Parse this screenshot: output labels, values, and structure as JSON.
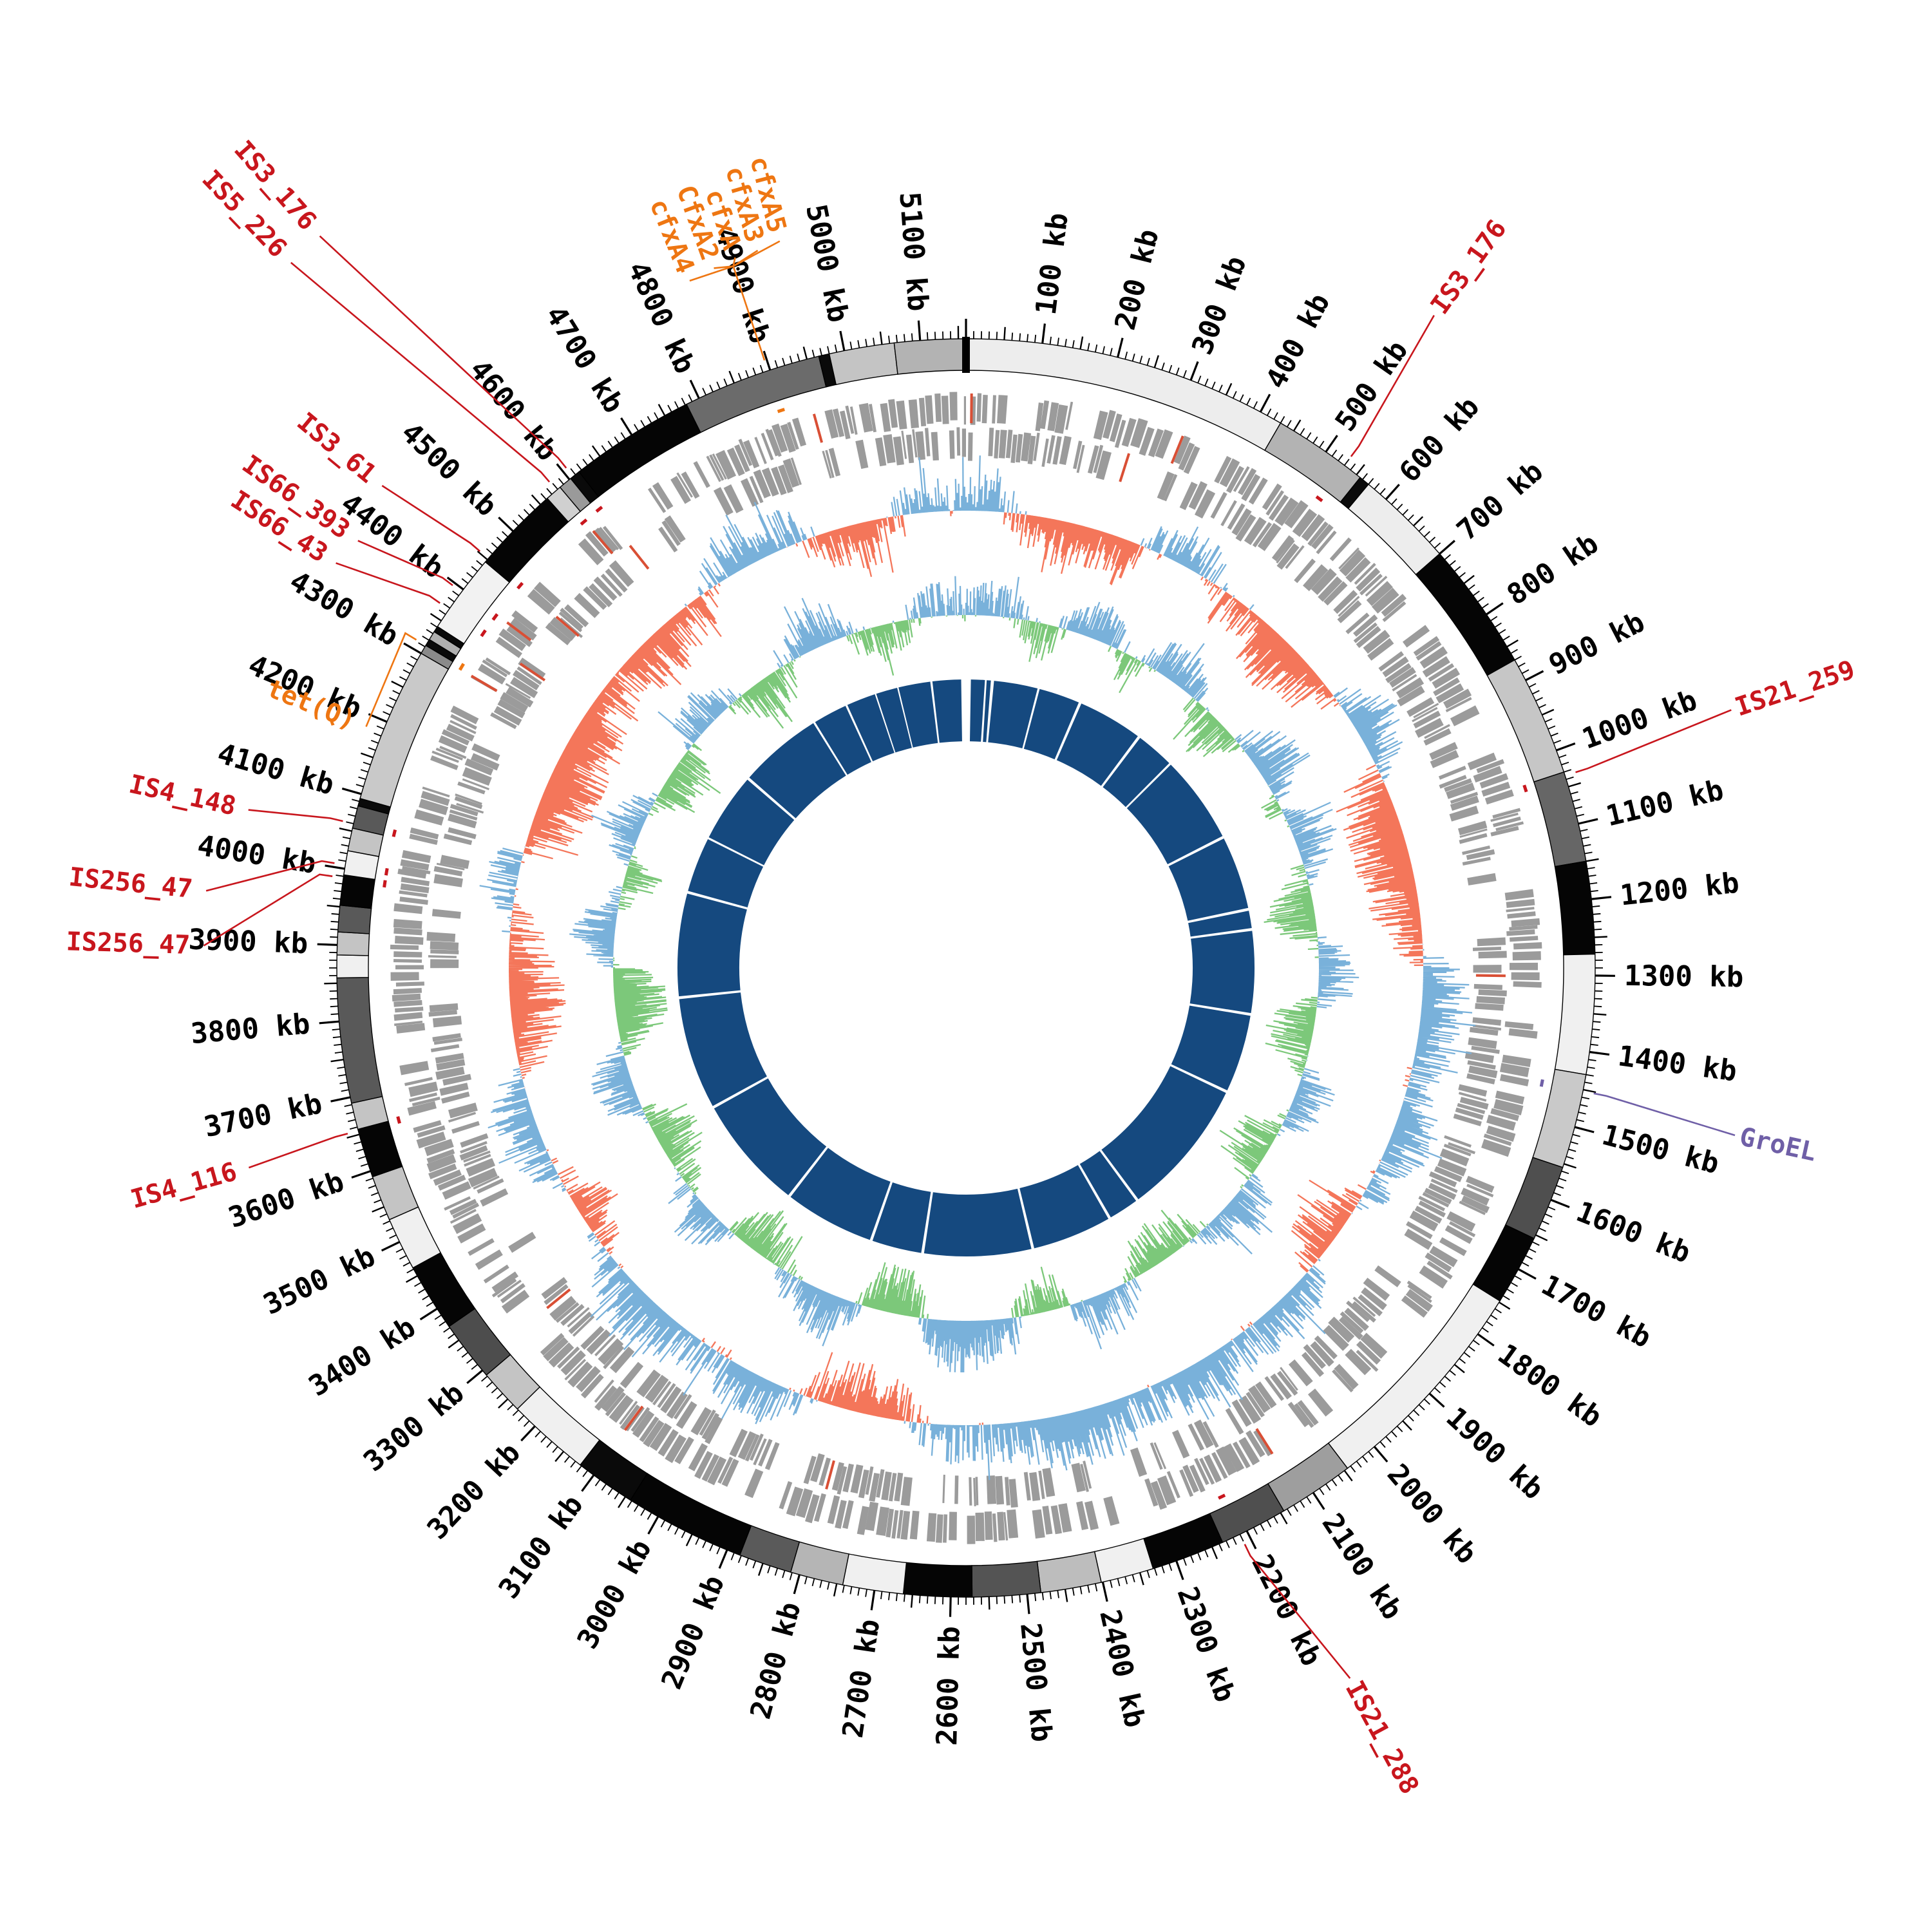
{
  "chart_data": {
    "type": "circular-genome-map",
    "title": "",
    "unit": "kb",
    "genome_length_kb": 5160,
    "tick_major_interval_kb": 100,
    "tick_minor_interval_kb": 10,
    "tick_label_suffix": " kb",
    "grid": false,
    "legend_position": "none",
    "colors": {
      "background": "#ffffff",
      "tick": "#000000",
      "tick_label": "#000000",
      "gene_block": "#9b9b9b",
      "gene_mark_red": "#d94f35",
      "skew_positive_blue": "#79b1da",
      "skew_negative_salmon": "#f4765a",
      "content_positive_blue": "#79b1da",
      "content_negative_green": "#7cc87a",
      "alignment_navy": "#15497f",
      "annotation_red": "#c8161d",
      "annotation_orange": "#ee7612",
      "annotation_purple": "#6f5fa7"
    },
    "contigs": [
      {
        "start": 0,
        "end": 430,
        "shade": "#ededed"
      },
      {
        "start": 430,
        "end": 556,
        "shade": "#b3b3b3"
      },
      {
        "start": 556,
        "end": 570,
        "shade": "#0a0a0a"
      },
      {
        "start": 570,
        "end": 700,
        "shade": "#ededed"
      },
      {
        "start": 700,
        "end": 870,
        "shade": "#050505"
      },
      {
        "start": 870,
        "end": 1030,
        "shade": "#c6c6c6"
      },
      {
        "start": 1030,
        "end": 1150,
        "shade": "#666666"
      },
      {
        "start": 1150,
        "end": 1272,
        "shade": "#050505"
      },
      {
        "start": 1272,
        "end": 1430,
        "shade": "#f0f0f0"
      },
      {
        "start": 1430,
        "end": 1555,
        "shade": "#c9c9c9"
      },
      {
        "start": 1555,
        "end": 1655,
        "shade": "#4f4f4f"
      },
      {
        "start": 1655,
        "end": 1748,
        "shade": "#050505"
      },
      {
        "start": 1748,
        "end": 2045,
        "shade": "#f0f0f0"
      },
      {
        "start": 2045,
        "end": 2145,
        "shade": "#9e9e9e"
      },
      {
        "start": 2145,
        "end": 2235,
        "shade": "#4f4f4f"
      },
      {
        "start": 2235,
        "end": 2332,
        "shade": "#050505"
      },
      {
        "start": 2332,
        "end": 2402,
        "shade": "#f0f0f0"
      },
      {
        "start": 2402,
        "end": 2482,
        "shade": "#bdbdbd"
      },
      {
        "start": 2482,
        "end": 2572,
        "shade": "#545454"
      },
      {
        "start": 2572,
        "end": 2662,
        "shade": "#050505"
      },
      {
        "start": 2662,
        "end": 2742,
        "shade": "#f0f0f0"
      },
      {
        "start": 2742,
        "end": 2812,
        "shade": "#b5b5b5"
      },
      {
        "start": 2812,
        "end": 2882,
        "shade": "#5a5a5a"
      },
      {
        "start": 2882,
        "end": 3042,
        "shade": "#050505"
      },
      {
        "start": 3042,
        "end": 3122,
        "shade": "#0a0a0a"
      },
      {
        "start": 3122,
        "end": 3232,
        "shade": "#f0f0f0"
      },
      {
        "start": 3232,
        "end": 3292,
        "shade": "#c4c4c4"
      },
      {
        "start": 3292,
        "end": 3372,
        "shade": "#4d4d4d"
      },
      {
        "start": 3372,
        "end": 3462,
        "shade": "#050505"
      },
      {
        "start": 3462,
        "end": 3532,
        "shade": "#f0f0f0"
      },
      {
        "start": 3532,
        "end": 3592,
        "shade": "#c4c4c4"
      },
      {
        "start": 3592,
        "end": 3657,
        "shade": "#050505"
      },
      {
        "start": 3657,
        "end": 3692,
        "shade": "#c4c4c4"
      },
      {
        "start": 3692,
        "end": 3857,
        "shade": "#595959"
      },
      {
        "start": 3857,
        "end": 3887,
        "shade": "#f0f0f0"
      },
      {
        "start": 3887,
        "end": 3917,
        "shade": "#c4c4c4"
      },
      {
        "start": 3917,
        "end": 3952,
        "shade": "#595959"
      },
      {
        "start": 3952,
        "end": 3992,
        "shade": "#050505"
      },
      {
        "start": 3992,
        "end": 4024,
        "shade": "#f0f0f0"
      },
      {
        "start": 4024,
        "end": 4054,
        "shade": "#c4c4c4"
      },
      {
        "start": 4054,
        "end": 4084,
        "shade": "#595959"
      },
      {
        "start": 4084,
        "end": 4094,
        "shade": "#0a0a0a"
      },
      {
        "start": 4094,
        "end": 4300,
        "shade": "#c9c9c9"
      },
      {
        "start": 4300,
        "end": 4312,
        "shade": "#8a8a8a"
      },
      {
        "start": 4312,
        "end": 4321,
        "shade": "#0a0a0a"
      },
      {
        "start": 4321,
        "end": 4333,
        "shade": "#b0b0b0"
      },
      {
        "start": 4333,
        "end": 4341,
        "shade": "#0a0a0a"
      },
      {
        "start": 4341,
        "end": 4446,
        "shade": "#f2f2f2"
      },
      {
        "start": 4446,
        "end": 4562,
        "shade": "#050505"
      },
      {
        "start": 4562,
        "end": 4584,
        "shade": "#d0d0d0"
      },
      {
        "start": 4584,
        "end": 4602,
        "shade": "#9a9a9a"
      },
      {
        "start": 4602,
        "end": 4616,
        "shade": "#0a0a0a"
      },
      {
        "start": 4616,
        "end": 4782,
        "shade": "#050505"
      },
      {
        "start": 4782,
        "end": 4966,
        "shade": "#6b6b6b"
      },
      {
        "start": 4966,
        "end": 4980,
        "shade": "#0a0a0a"
      },
      {
        "start": 4980,
        "end": 5066,
        "shade": "#c4c4c4"
      },
      {
        "start": 5066,
        "end": 5160,
        "shade": "#b3b3b3"
      }
    ],
    "gene_marks_red_kb": [
      8,
      252,
      318,
      1302,
      2118,
      2795,
      3102,
      3310,
      4308,
      4362,
      4400,
      4452,
      4580,
      4608,
      4940
    ],
    "alignment_blocks_kb": [
      [
        14,
        54
      ],
      [
        60,
        72
      ],
      [
        80,
        206
      ],
      [
        212,
        330
      ],
      [
        338,
        524
      ],
      [
        532,
        642
      ],
      [
        648,
        900
      ],
      [
        908,
        1118
      ],
      [
        1126,
        1176
      ],
      [
        1184,
        1419
      ],
      [
        1427,
        1650
      ],
      [
        1658,
        2054
      ],
      [
        2062,
        2148
      ],
      [
        2156,
        2384
      ],
      [
        2392,
        2700
      ],
      [
        2708,
        2851
      ],
      [
        2859,
        3117
      ],
      [
        3125,
        3452
      ],
      [
        3460,
        3781
      ],
      [
        3789,
        4084
      ],
      [
        4092,
        4250
      ],
      [
        4256,
        4454
      ],
      [
        4462,
        4702
      ],
      [
        4708,
        4806
      ],
      [
        4812,
        4896
      ],
      [
        4900,
        4962
      ],
      [
        4966,
        5058
      ],
      [
        5064,
        5146
      ]
    ],
    "gc_skew": {
      "step_kb": 50,
      "note": "approximate values read from figure, +1 outward blue, -1 inward salmon",
      "values": [
        0.3,
        0.5,
        -0.2,
        -0.5,
        -0.6,
        -0.4,
        -0.5,
        0.2,
        0.5,
        0.3,
        -0.3,
        -0.2,
        -0.6,
        -0.7,
        -0.5,
        -0.3,
        0.4,
        0.5,
        0.3,
        -0.4,
        -0.7,
        -0.8,
        -0.7,
        -0.6,
        -0.5,
        -0.3,
        0.4,
        0.6,
        0.5,
        0.3,
        0.2,
        0.4,
        0.5,
        0.3,
        0.2,
        -0.3,
        -0.5,
        -0.4,
        0.3,
        0.5,
        0.4,
        0.2,
        0.5,
        0.6,
        0.4,
        0.3,
        0.5,
        0.6,
        0.7,
        0.5,
        0.4,
        0.3,
        0.4,
        0.2,
        -0.4,
        -0.6,
        -0.5,
        -0.3,
        0.3,
        0.5,
        0.4,
        0.2,
        0.3,
        0.5,
        0.6,
        0.4,
        0.2,
        -0.2,
        -0.4,
        -0.3,
        0.2,
        0.4,
        0.5,
        0.3,
        -0.2,
        -0.5,
        -0.7,
        -0.6,
        -0.4,
        -0.2,
        0.3,
        0.4,
        -0.3,
        -0.6,
        -0.8,
        -0.7,
        -0.5,
        -0.6,
        -0.4,
        -0.3,
        -0.5,
        -0.6,
        -0.4,
        -0.2,
        0.3,
        0.5,
        0.4,
        0.3,
        -0.3,
        -0.5,
        -0.4,
        0.2,
        0.3
      ]
    },
    "gc_content": {
      "step_kb": 50,
      "note": "approximate values read from figure, +1 outward blue, -1 inward green",
      "values": [
        0.2,
        0.4,
        0.3,
        -0.2,
        -0.4,
        0.3,
        0.5,
        0.2,
        -0.3,
        0.2,
        0.4,
        0.3,
        -0.2,
        -0.5,
        -0.3,
        0.4,
        0.6,
        0.3,
        -0.2,
        0.3,
        0.5,
        0.2,
        -0.3,
        -0.6,
        -0.4,
        0.2,
        0.4,
        0.3,
        -0.4,
        -0.6,
        -0.3,
        0.3,
        0.5,
        0.2,
        -0.3,
        -0.5,
        -0.2,
        0.4,
        0.5,
        0.3,
        -0.2,
        -0.4,
        -0.6,
        -0.3,
        0.3,
        0.5,
        0.4,
        -0.3,
        -0.5,
        -0.2,
        0.4,
        0.6,
        0.8,
        0.5,
        -0.4,
        -0.7,
        -0.5,
        0.4,
        0.6,
        0.4,
        0.2,
        -0.3,
        -0.5,
        -0.4,
        0.3,
        0.5,
        0.3,
        -0.2,
        -0.4,
        -0.6,
        -0.3,
        0.3,
        0.5,
        0.4,
        -0.4,
        -0.7,
        -0.8,
        -0.5,
        0.4,
        0.6,
        0.3,
        -0.2,
        -0.4,
        0.3,
        0.5,
        0.2,
        -0.3,
        -0.5,
        -0.3,
        0.3,
        0.4,
        0.2,
        -0.3,
        -0.5,
        -0.3,
        0.3,
        0.5,
        0.4,
        -0.2,
        -0.4,
        -0.3,
        0.2,
        0.3
      ]
    },
    "annotations": [
      {
        "label": "IS3_176",
        "attach_kb": 530,
        "label_kb": 511,
        "label_r": 1255,
        "color": "red"
      },
      {
        "label": "IS21_259",
        "attach_kb": 1035,
        "label_kb": 1023,
        "label_r": 1262,
        "color": "red"
      },
      {
        "label": "GroEL",
        "attach_kb": 1452,
        "label_kb": 1466,
        "label_r": 1230,
        "color": "purple"
      },
      {
        "label": "IS21_288",
        "attach_kb": 2210,
        "label_kb": 2173,
        "label_r": 1262,
        "color": "red"
      },
      {
        "label": "IS4_116",
        "attach_kb": 3655,
        "label_kb": 3647,
        "label_r": 1345,
        "color": "red"
      },
      {
        "label": "IS256_47",
        "attach_kb": 4005,
        "label_kb": 3953,
        "label_r": 1400,
        "color": "red"
      },
      {
        "label": "IS256_47",
        "attach_kb": 3988,
        "label_kb": 3894,
        "label_r": 1398,
        "color": "red"
      },
      {
        "label": "IS4_148",
        "attach_kb": 4060,
        "label_kb": 4048,
        "label_r": 1330,
        "color": "red"
      },
      {
        "label": "tet(Q)",
        "attach_kb": 4312,
        "label_kb": 4184,
        "label_r": 1168,
        "color": "orange"
      },
      {
        "label": "IS66_43",
        "attach_kb": 4368,
        "label_kb": 4339,
        "label_r": 1352,
        "color": "red"
      },
      {
        "label": "IS66_393",
        "attach_kb": 4396,
        "label_kb": 4373,
        "label_r": 1368,
        "color": "red"
      },
      {
        "label": "IS3_61",
        "attach_kb": 4452,
        "label_kb": 4437,
        "label_r": 1340,
        "color": "red"
      },
      {
        "label": "IS5_226",
        "attach_kb": 4578,
        "label_kb": 4533,
        "label_r": 1705,
        "color": "red"
      },
      {
        "label": "IS3_176",
        "attach_kb": 4606,
        "label_kb": 4566,
        "label_r": 1705,
        "color": "red"
      }
    ],
    "cfxa_cluster": {
      "color": "orange",
      "attach_kb": 4897,
      "converge_r": 1148,
      "labels": [
        {
          "label": "cfxA4",
          "label_kb": 4846,
          "label_r": 1285
        },
        {
          "label": "CfxA2",
          "label_kb": 4876,
          "label_r": 1290
        },
        {
          "label": "cfxA",
          "label_kb": 4902,
          "label_r": 1270
        },
        {
          "label": "cfxA3",
          "label_kb": 4928,
          "label_r": 1295
        },
        {
          "label": "cfxA5",
          "label_kb": 4954,
          "label_r": 1300
        }
      ]
    }
  }
}
